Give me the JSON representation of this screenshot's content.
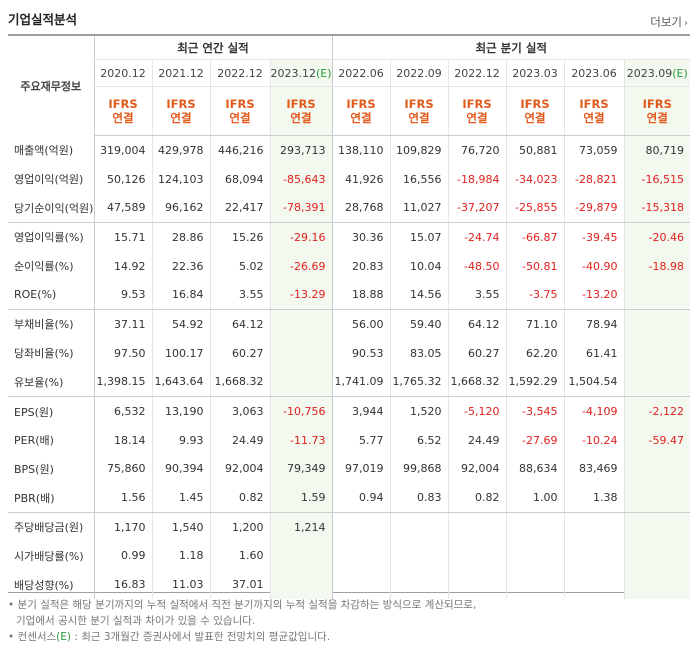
{
  "section": {
    "title": "기업실적분석",
    "more_label": "더보기"
  },
  "table": {
    "label_header": "주요재무정보",
    "annual_header": "최근 연간 실적",
    "quarter_header": "최근 분기 실적",
    "annual_periods": [
      "2020.12",
      "2021.12",
      "2022.12",
      "2023.12"
    ],
    "annual_estimate_mark": "(E)",
    "quarter_periods": [
      "2022.06",
      "2022.09",
      "2022.12",
      "2023.03",
      "2023.06",
      "2023.09"
    ],
    "quarter_estimate_mark": "(E)",
    "ifrs_line1": "IFRS",
    "ifrs_line2": "연결",
    "rows": [
      {
        "label": "매출액(억원)",
        "values": [
          "319,004",
          "429,978",
          "446,216",
          "293,713",
          "138,110",
          "109,829",
          "76,720",
          "50,881",
          "73,059",
          "80,719"
        ]
      },
      {
        "label": "영업이익(억원)",
        "values": [
          "50,126",
          "124,103",
          "68,094",
          "-85,643",
          "41,926",
          "16,556",
          "-18,984",
          "-34,023",
          "-28,821",
          "-16,515"
        ]
      },
      {
        "label": "당기순이익(억원)",
        "values": [
          "47,589",
          "96,162",
          "22,417",
          "-78,391",
          "28,768",
          "11,027",
          "-37,207",
          "-25,855",
          "-29,879",
          "-15,318"
        ]
      },
      {
        "label": "영업이익률(%)",
        "values": [
          "15.71",
          "28.86",
          "15.26",
          "-29.16",
          "30.36",
          "15.07",
          "-24.74",
          "-66.87",
          "-39.45",
          "-20.46"
        ]
      },
      {
        "label": "순이익률(%)",
        "values": [
          "14.92",
          "22.36",
          "5.02",
          "-26.69",
          "20.83",
          "10.04",
          "-48.50",
          "-50.81",
          "-40.90",
          "-18.98"
        ]
      },
      {
        "label": "ROE(%)",
        "values": [
          "9.53",
          "16.84",
          "3.55",
          "-13.29",
          "18.88",
          "14.56",
          "3.55",
          "-3.75",
          "-13.20",
          ""
        ]
      },
      {
        "label": "부채비율(%)",
        "values": [
          "37.11",
          "54.92",
          "64.12",
          "",
          "56.00",
          "59.40",
          "64.12",
          "71.10",
          "78.94",
          ""
        ]
      },
      {
        "label": "당좌비율(%)",
        "values": [
          "97.50",
          "100.17",
          "60.27",
          "",
          "90.53",
          "83.05",
          "60.27",
          "62.20",
          "61.41",
          ""
        ]
      },
      {
        "label": "유보율(%)",
        "values": [
          "1,398.15",
          "1,643.64",
          "1,668.32",
          "",
          "1,741.09",
          "1,765.32",
          "1,668.32",
          "1,592.29",
          "1,504.54",
          ""
        ]
      },
      {
        "label": "EPS(원)",
        "values": [
          "6,532",
          "13,190",
          "3,063",
          "-10,756",
          "3,944",
          "1,520",
          "-5,120",
          "-3,545",
          "-4,109",
          "-2,122"
        ]
      },
      {
        "label": "PER(배)",
        "values": [
          "18.14",
          "9.93",
          "24.49",
          "-11.73",
          "5.77",
          "6.52",
          "24.49",
          "-27.69",
          "-10.24",
          "-59.47"
        ]
      },
      {
        "label": "BPS(원)",
        "values": [
          "75,860",
          "90,394",
          "92,004",
          "79,349",
          "97,019",
          "99,868",
          "92,004",
          "88,634",
          "83,469",
          ""
        ]
      },
      {
        "label": "PBR(배)",
        "values": [
          "1.56",
          "1.45",
          "0.82",
          "1.59",
          "0.94",
          "0.83",
          "0.82",
          "1.00",
          "1.38",
          ""
        ]
      },
      {
        "label": "주당배당금(원)",
        "values": [
          "1,170",
          "1,540",
          "1,200",
          "1,214",
          "",
          "",
          "",
          "",
          "",
          ""
        ]
      },
      {
        "label": "시가배당률(%)",
        "values": [
          "0.99",
          "1.18",
          "1.60",
          "",
          "",
          "",
          "",
          "",
          "",
          ""
        ]
      },
      {
        "label": "배당성향(%)",
        "values": [
          "16.83",
          "11.03",
          "37.01",
          "",
          "",
          "",
          "",
          "",
          "",
          ""
        ]
      }
    ]
  },
  "notes": {
    "line1": "분기 실적은 해당 분기까지의 누적 실적에서 직전 분기까지의 누적 실적을 차감하는 방식으로 계산되므로,",
    "line2": "기업에서 공시한 분기 실적과 차이가 있을 수 있습니다.",
    "line3_prefix": "컨센서스",
    "line3_mark": "(E)",
    "line3_suffix": ": 최근 3개월간 증권사에서 발표한 전망치의 평균값입니다."
  }
}
